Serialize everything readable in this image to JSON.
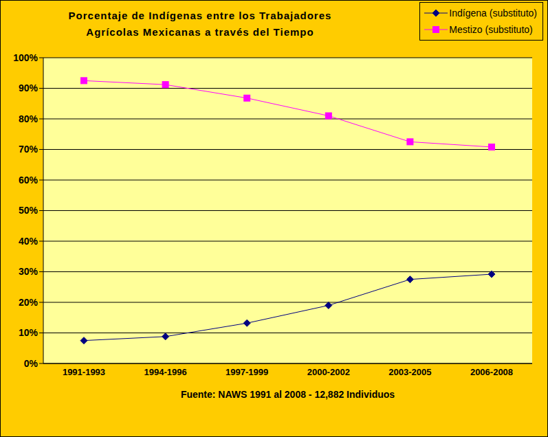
{
  "chart_data": {
    "type": "line",
    "title": [
      "Porcentaje de Indígenas entre los Trabajadores",
      "Agrícolas Mexicanas a través del Tiempo"
    ],
    "x_label": "Fuente: NAWS 1991 al 2008 - 12,882 Individuos",
    "categories": [
      "1991-1993",
      "1994-1996",
      "1997-1999",
      "2000-2002",
      "2003-2005",
      "2006-2008"
    ],
    "series": [
      {
        "name": "Indígena (substituto)",
        "color": "#000080",
        "marker": "diamond",
        "values": [
          7.5,
          8.8,
          13.2,
          19,
          27.5,
          29.2
        ]
      },
      {
        "name": "Mestizo (substituto)",
        "color": "#FF00FF",
        "marker": "square",
        "values": [
          92.5,
          91.2,
          86.8,
          81,
          72.5,
          70.8
        ]
      }
    ],
    "ylim": [
      0,
      100
    ],
    "yticks": [
      {
        "value": 0,
        "label": "0%"
      },
      {
        "value": 10,
        "label": "10%"
      },
      {
        "value": 20,
        "label": "20%"
      },
      {
        "value": 30,
        "label": "30%"
      },
      {
        "value": 40,
        "label": "40%"
      },
      {
        "value": 50,
        "label": "50%"
      },
      {
        "value": 60,
        "label": "60%"
      },
      {
        "value": 70,
        "label": "70%"
      },
      {
        "value": 80,
        "label": "80%"
      },
      {
        "value": 90,
        "label": "90%"
      },
      {
        "value": 100,
        "label": "100%"
      }
    ],
    "grid": true,
    "legend": "top-right"
  }
}
